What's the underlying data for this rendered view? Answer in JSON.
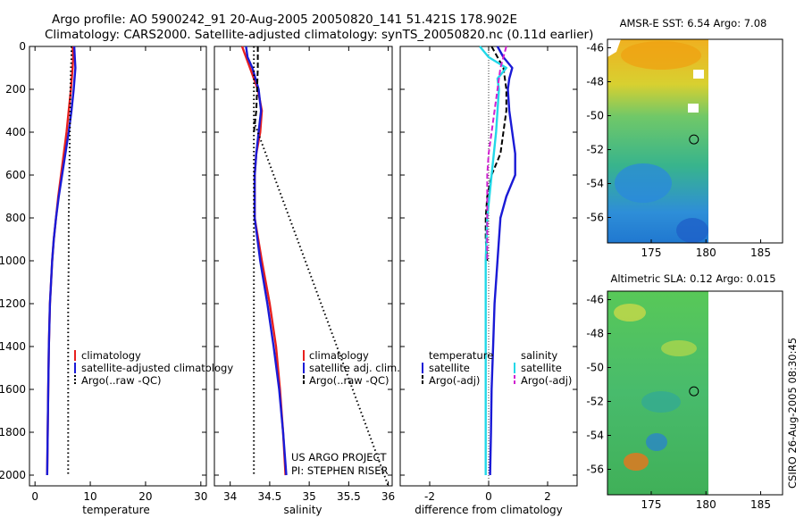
{
  "header": {
    "line1": "Argo profile: AO 5900242_91 20-Aug-2005 20050820_141 51.421S 178.902E",
    "line2": "Climatology: CARS2000. Satellite-adjusted climatology: synTS_20050820.nc (0.11d earlier)"
  },
  "footer": {
    "project": "US ARGO PROJECT",
    "pi": "PI: STEPHEN RISER",
    "stamp": "CSIRO 26-Aug-2005 08:30:45"
  },
  "colors": {
    "climatology": "#e8201e",
    "satellite": "#1a1ad6",
    "argo": "#000000",
    "salinity_satellite": "#22d8e8",
    "salinity_argo": "#d020d0"
  },
  "chart_data": [
    {
      "id": "temperature",
      "type": "line",
      "xlabel": "temperature",
      "xlim": [
        -1,
        31
      ],
      "ylim": [
        2050,
        0
      ],
      "xticks": [
        0,
        10,
        20,
        30
      ],
      "yticks": [
        0,
        200,
        400,
        600,
        800,
        1000,
        1200,
        1400,
        1600,
        1800,
        2000
      ],
      "legend": {
        "placement": "lower-right",
        "entries": [
          "climatology",
          "satellite-adjusted climatology",
          "Argo(..raw -QC)"
        ]
      },
      "series": [
        {
          "name": "climatology",
          "color_key": "climatology",
          "style": "solid",
          "depth": [
            0,
            50,
            100,
            200,
            300,
            400,
            500,
            600,
            700,
            800,
            900,
            1000,
            1200,
            1400,
            1600,
            1800,
            2000
          ],
          "values": [
            6.8,
            6.9,
            6.8,
            6.5,
            6.1,
            5.7,
            5.2,
            4.7,
            4.2,
            3.8,
            3.4,
            3.1,
            2.7,
            2.5,
            2.4,
            2.3,
            2.2
          ]
        },
        {
          "name": "satellite-adjusted climatology",
          "color_key": "satellite",
          "style": "solid",
          "depth": [
            0,
            50,
            100,
            200,
            300,
            400,
            500,
            600,
            700,
            800,
            900,
            1000,
            1200,
            1400,
            1600,
            1800,
            2000
          ],
          "values": [
            7.1,
            7.2,
            7.3,
            7.0,
            6.6,
            6.1,
            5.5,
            4.9,
            4.3,
            3.8,
            3.4,
            3.1,
            2.7,
            2.5,
            2.4,
            2.3,
            2.2
          ]
        },
        {
          "name": "Argo(..raw -QC)",
          "color_key": "argo",
          "style": "dotted",
          "depth": [
            0,
            50,
            100,
            200,
            400,
            600,
            800,
            1000,
            1200,
            1400,
            1600,
            1800,
            2000
          ],
          "values": [
            6.6,
            6.6,
            6.5,
            6.4,
            6.3,
            6.2,
            6.1,
            6.1,
            6.0,
            6.0,
            6.0,
            6.0,
            6.0
          ]
        }
      ]
    },
    {
      "id": "salinity",
      "type": "line",
      "xlabel": "salinity",
      "xlim": [
        33.8,
        36.05
      ],
      "ylim": [
        2050,
        0
      ],
      "xticks": [
        34,
        34.5,
        35,
        35.5,
        36
      ],
      "legend": {
        "placement": "lower-right",
        "entries": [
          "climatology",
          "satellite adj. clim.",
          "Argo(..raw -QC)"
        ]
      },
      "series": [
        {
          "name": "climatology",
          "color_key": "climatology",
          "style": "solid",
          "depth": [
            0,
            50,
            100,
            200,
            300,
            400,
            500,
            600,
            800,
            1000,
            1200,
            1400,
            1600,
            1800,
            2000
          ],
          "values": [
            34.15,
            34.2,
            34.25,
            34.35,
            34.4,
            34.38,
            34.33,
            34.31,
            34.31,
            34.4,
            34.5,
            34.58,
            34.63,
            34.67,
            34.7
          ]
        },
        {
          "name": "satellite adj. clim.",
          "color_key": "satellite",
          "style": "solid",
          "depth": [
            0,
            50,
            100,
            200,
            300,
            400,
            500,
            600,
            800,
            1000,
            1200,
            1400,
            1600,
            1800,
            2000
          ],
          "values": [
            34.2,
            34.22,
            34.28,
            34.36,
            34.39,
            34.36,
            34.33,
            34.31,
            34.31,
            34.38,
            34.47,
            34.55,
            34.62,
            34.67,
            34.71
          ]
        },
        {
          "name": "Argo(..raw -QC)",
          "color_key": "argo",
          "style": "dashed",
          "depth": [
            0,
            50,
            100,
            200,
            300,
            400
          ],
          "values": [
            34.35,
            34.35,
            34.35,
            34.34,
            34.33,
            34.3
          ]
        },
        {
          "name": "Argo(..raw -QC) profile",
          "color_key": "argo",
          "style": "dotted",
          "depth": [
            0,
            400,
            2000
          ],
          "values": [
            34.3,
            34.3,
            34.3
          ]
        },
        {
          "name": "Argo(..raw -QC) offscale",
          "color_key": "argo",
          "style": "dotted",
          "depth": [
            350,
            2050
          ],
          "values": [
            34.3,
            36.0
          ]
        }
      ]
    },
    {
      "id": "difference",
      "type": "line",
      "xlabel": "difference from climatology",
      "xlim": [
        -3,
        3
      ],
      "ylim": [
        2050,
        0
      ],
      "xticks": [
        -2,
        0,
        2
      ],
      "legend": {
        "placement": "lower-center",
        "entries": [
          "temperature",
          "satellite",
          "Argo(-adj)",
          "salinity",
          "satellite",
          "Argo(-adj)"
        ]
      },
      "series": [
        {
          "name": "temperature satellite",
          "color_key": "satellite",
          "style": "solid",
          "depth": [
            0,
            50,
            100,
            150,
            200,
            300,
            400,
            500,
            600,
            700,
            800,
            1000,
            1200,
            1400,
            1600,
            1800,
            2000
          ],
          "values": [
            0.3,
            0.5,
            0.8,
            0.7,
            0.65,
            0.7,
            0.8,
            0.9,
            0.9,
            0.6,
            0.4,
            0.3,
            0.2,
            0.15,
            0.1,
            0.08,
            0.05
          ]
        },
        {
          "name": "temperature Argo(-adj)",
          "color_key": "argo",
          "style": "dashed",
          "depth": [
            0,
            100,
            200,
            300,
            400,
            500,
            600,
            700,
            800,
            900,
            1000
          ],
          "values": [
            0.1,
            0.5,
            0.6,
            0.6,
            0.5,
            0.4,
            0.1,
            -0.05,
            -0.1,
            -0.1,
            -0.05
          ]
        },
        {
          "name": "salinity satellite",
          "color_key": "salinity_satellite",
          "style": "solid",
          "depth": [
            0,
            50,
            100,
            150,
            200,
            300,
            400,
            600,
            800,
            1000,
            1200,
            1400,
            1600,
            1800,
            2000
          ],
          "values": [
            -0.3,
            0.0,
            0.6,
            0.3,
            0.35,
            0.3,
            0.25,
            0.1,
            -0.05,
            -0.1,
            -0.1,
            -0.1,
            -0.1,
            -0.1,
            -0.1
          ]
        },
        {
          "name": "salinity Argo(-adj)",
          "color_key": "salinity_argo",
          "style": "dashed",
          "depth": [
            0,
            50,
            100,
            500,
            600,
            700,
            800,
            900,
            1000
          ],
          "values": [
            0.6,
            0.5,
            0.4,
            0.0,
            -0.05,
            -0.05,
            -0.05,
            -0.05,
            -0.05
          ]
        }
      ]
    },
    {
      "id": "sst-map",
      "type": "heatmap",
      "title": "AMSR-E SST: 6.54 Argo: 7.08",
      "xlim": [
        171,
        187
      ],
      "ylim": [
        -57.5,
        -45.5
      ],
      "xticks": [
        175,
        180,
        185
      ],
      "yticks": [
        -46,
        -48,
        -50,
        -52,
        -54,
        -56
      ],
      "marker": {
        "lon": 178.9,
        "lat": -51.4
      }
    },
    {
      "id": "sla-map",
      "type": "heatmap",
      "title": "Altimetric SLA: 0.12 Argo: 0.015",
      "xlim": [
        171,
        187
      ],
      "ylim": [
        -57.5,
        -45.5
      ],
      "xticks": [
        175,
        180,
        185
      ],
      "yticks": [
        -46,
        -48,
        -50,
        -52,
        -54,
        -56
      ],
      "marker": {
        "lon": 178.9,
        "lat": -51.4
      }
    }
  ]
}
